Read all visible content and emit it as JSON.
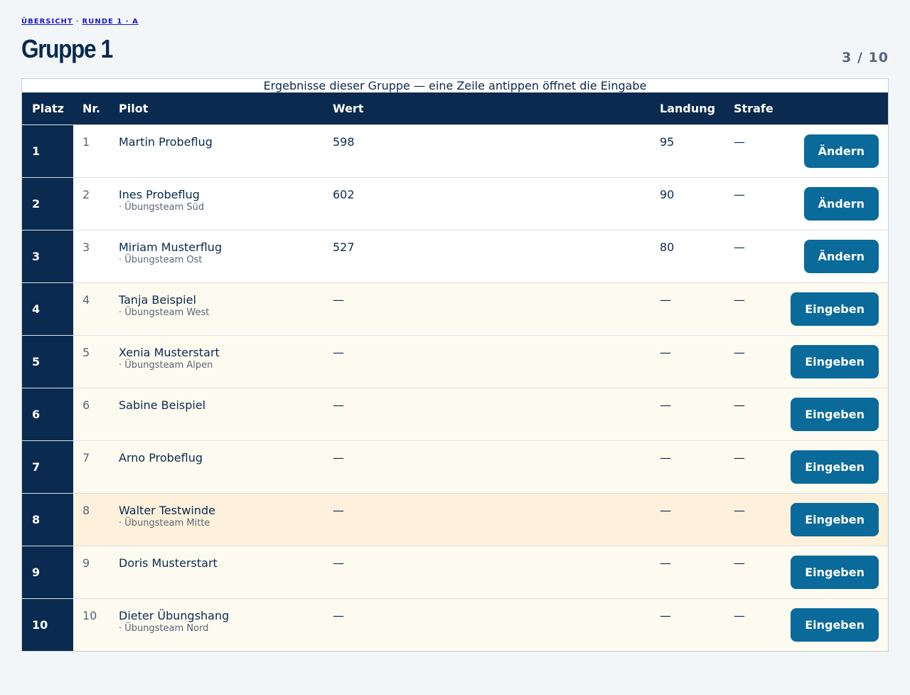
{
  "breadcrumb": {
    "items": [
      "ÜBERSICHT",
      "RUNDE 1 · A"
    ],
    "separator": "·"
  },
  "title": "Gruppe 1",
  "progress": "3 / 10",
  "table": {
    "caption": "Ergebnisse dieser Gruppe — eine Zeile antippen öffnet die Eingabe",
    "headers": [
      "Platz",
      "Nr.",
      "Pilot",
      "Wert",
      "Landung",
      "Strafe"
    ],
    "rows": [
      {
        "place": 1,
        "nr": 1,
        "pilot": "Martin Probeflug",
        "team": null,
        "wert": 598,
        "landung": 95,
        "strafe": "—",
        "action": "Ändern"
      },
      {
        "place": 2,
        "nr": 2,
        "pilot": "Ines Probeflug",
        "team": "· Übungsteam Süd",
        "wert": 602,
        "landung": 90,
        "strafe": "—",
        "action": "Ändern"
      },
      {
        "place": 3,
        "nr": 3,
        "pilot": "Miriam Musterflug",
        "team": "· Übungsteam Ost",
        "wert": 527,
        "landung": 80,
        "strafe": "—",
        "action": "Ändern"
      },
      {
        "place": 4,
        "nr": 4,
        "pilot": "Tanja Beispiel",
        "team": "· Übungsteam West",
        "wert": "—",
        "landung": "—",
        "strafe": "—",
        "action": "Eingeben"
      },
      {
        "place": 5,
        "nr": 5,
        "pilot": "Xenia Musterstart",
        "team": "· Übungsteam Alpen",
        "wert": "—",
        "landung": "—",
        "strafe": "—",
        "action": "Eingeben"
      },
      {
        "place": 6,
        "nr": 6,
        "pilot": "Sabine Beispiel",
        "team": null,
        "wert": "—",
        "landung": "—",
        "strafe": "—",
        "action": "Eingeben"
      },
      {
        "place": 7,
        "nr": 7,
        "pilot": "Arno Probeflug",
        "team": null,
        "wert": "—",
        "landung": "—",
        "strafe": "—",
        "action": "Eingeben"
      },
      {
        "place": 8,
        "nr": 8,
        "pilot": "Walter Testwinde",
        "team": "· Übungsteam Mitte",
        "wert": "—",
        "landung": "—",
        "strafe": "—",
        "action": "Eingeben"
      },
      {
        "place": 9,
        "nr": 9,
        "pilot": "Doris Musterstart",
        "team": null,
        "wert": "—",
        "landung": "—",
        "strafe": "—",
        "action": "Eingeben"
      },
      {
        "place": 10,
        "nr": 10,
        "pilot": "Dieter Übungshang",
        "team": "· Übungsteam Nord",
        "wert": "—",
        "landung": "—",
        "strafe": "—",
        "action": "Eingeben"
      }
    ]
  }
}
